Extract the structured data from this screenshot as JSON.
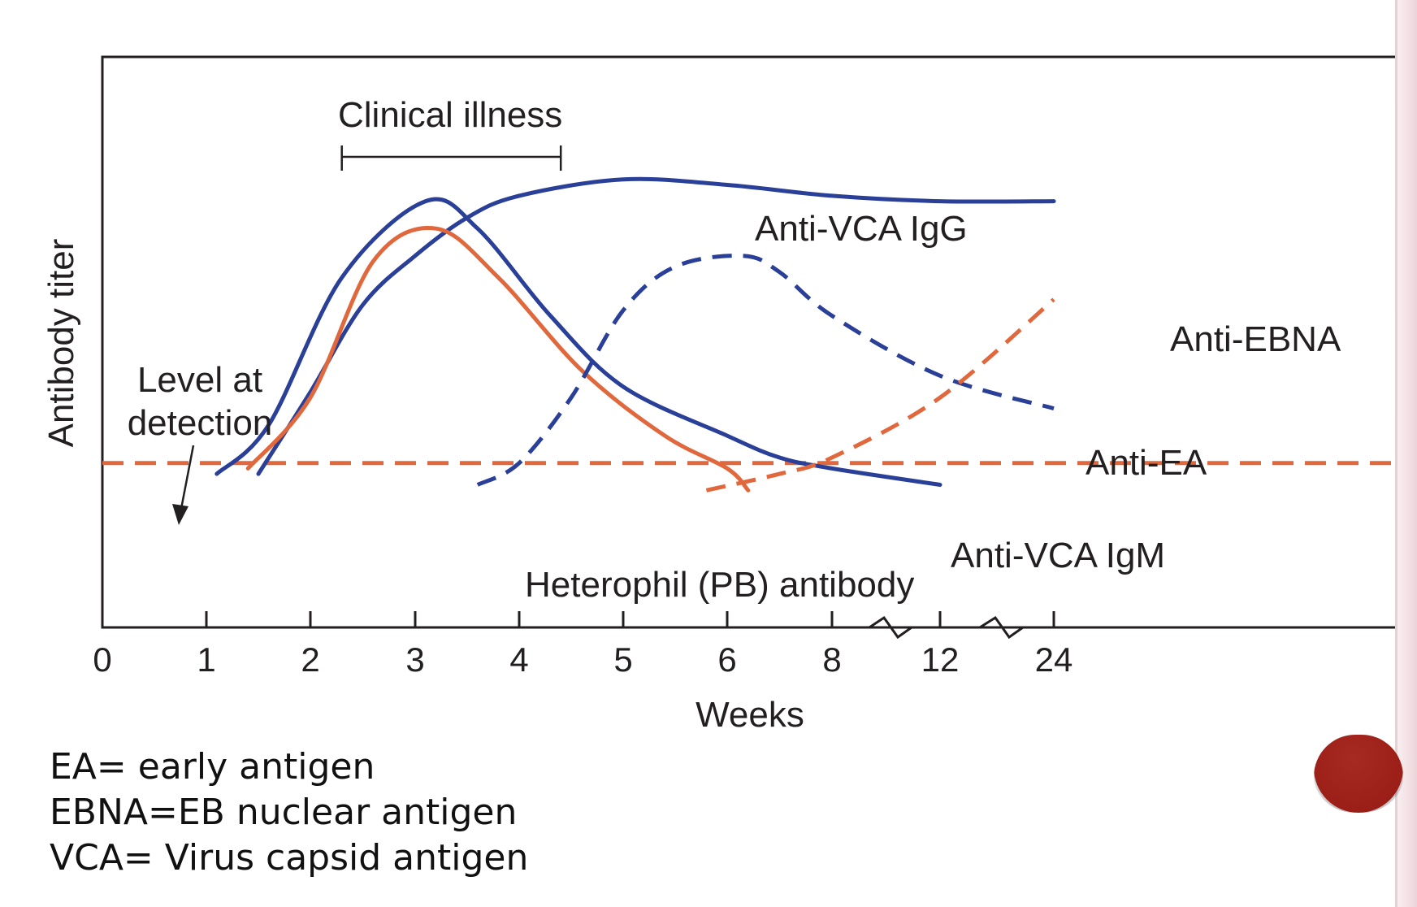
{
  "notes": [
    "EA= early antigen",
    "EBNA=EB nuclear antigen",
    "VCA= Virus capsid antigen"
  ],
  "colors": {
    "blue": "#2a3f97",
    "orange": "#e0683c",
    "axis": "#231f20",
    "accent_dot": "#9b1f17"
  },
  "chart_data": {
    "type": "line",
    "title": "",
    "xlabel": "Weeks",
    "ylabel": "Antibody titer",
    "x_ticks": [
      "0",
      "1",
      "2",
      "3",
      "4",
      "5",
      "6",
      "8",
      "12",
      "24"
    ],
    "x_scale": "piecewise (broken axis between 8 and 12, and between 12 and 24)",
    "y_scale": "relative (no numeric ticks)",
    "grid": false,
    "detection_level": {
      "label": "Level at detection",
      "style": "dashed",
      "color": "#e0683c",
      "y": 0.3
    },
    "annotations": [
      {
        "label": "Clinical illness",
        "x_range": [
          2.3,
          4.4
        ],
        "type": "bracket"
      }
    ],
    "series": [
      {
        "name": "Anti-VCA IgG",
        "color": "#2a3f97",
        "style": "solid",
        "points": [
          [
            1.5,
            0.28
          ],
          [
            2,
            0.43
          ],
          [
            2.5,
            0.59
          ],
          [
            3,
            0.68
          ],
          [
            3.5,
            0.75
          ],
          [
            4,
            0.79
          ],
          [
            5,
            0.82
          ],
          [
            6,
            0.81
          ],
          [
            8,
            0.79
          ],
          [
            12,
            0.78
          ],
          [
            24,
            0.78
          ]
        ]
      },
      {
        "name": "Anti-VCA IgM",
        "color": "#2a3f97",
        "style": "solid",
        "points": [
          [
            1.1,
            0.28
          ],
          [
            1.6,
            0.37
          ],
          [
            2.3,
            0.64
          ],
          [
            3.1,
            0.78
          ],
          [
            3.6,
            0.73
          ],
          [
            4.3,
            0.57
          ],
          [
            5,
            0.44
          ],
          [
            6,
            0.35
          ],
          [
            7,
            0.31
          ],
          [
            8,
            0.29
          ],
          [
            12,
            0.26
          ]
        ]
      },
      {
        "name": "Heterophil (PB) antibody",
        "color": "#e0683c",
        "style": "solid",
        "points": [
          [
            1.4,
            0.29
          ],
          [
            2,
            0.42
          ],
          [
            2.6,
            0.67
          ],
          [
            3.2,
            0.73
          ],
          [
            3.8,
            0.64
          ],
          [
            4.6,
            0.47
          ],
          [
            5.4,
            0.35
          ],
          [
            6,
            0.29
          ],
          [
            6.4,
            0.25
          ]
        ]
      },
      {
        "name": "Anti-EA",
        "color": "#2a3f97",
        "style": "dashed",
        "points": [
          [
            3.6,
            0.26
          ],
          [
            4,
            0.3
          ],
          [
            4.5,
            0.42
          ],
          [
            5,
            0.58
          ],
          [
            5.5,
            0.66
          ],
          [
            6.3,
            0.68
          ],
          [
            7,
            0.65
          ],
          [
            8,
            0.57
          ],
          [
            12,
            0.46
          ],
          [
            24,
            0.4
          ]
        ]
      },
      {
        "name": "Anti-EBNA",
        "color": "#e0683c",
        "style": "dashed",
        "points": [
          [
            5.8,
            0.25
          ],
          [
            7,
            0.28
          ],
          [
            8,
            0.31
          ],
          [
            12,
            0.42
          ],
          [
            24,
            0.6
          ]
        ]
      }
    ]
  }
}
